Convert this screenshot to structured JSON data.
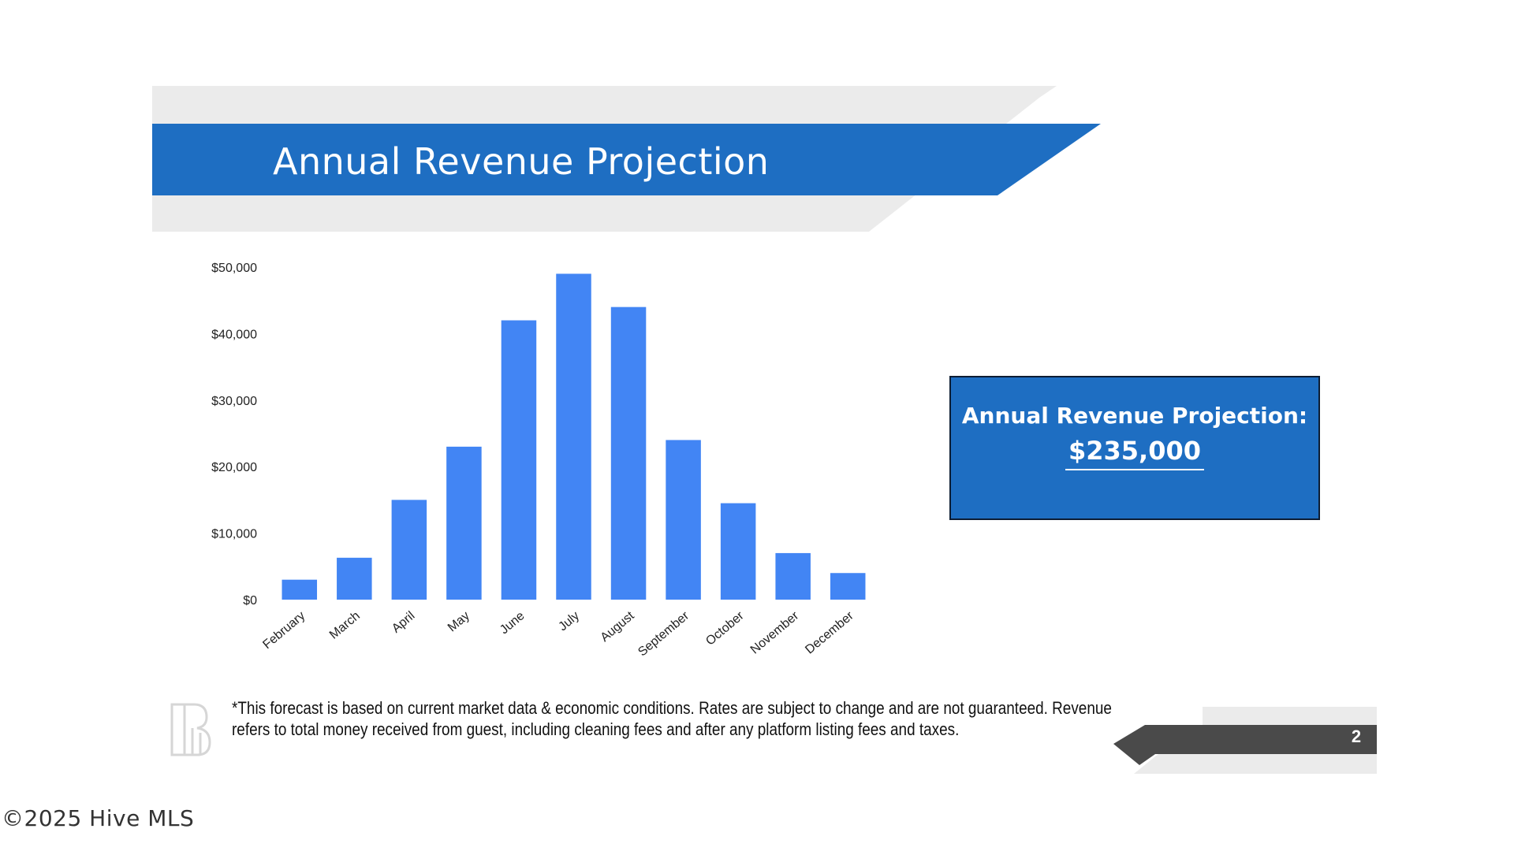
{
  "slide": {
    "title": "Annual Revenue Projection",
    "page_number": "2",
    "footnote": "*This forecast is based on current market data & economic conditions. Rates are subject to change and are not guaranteed. Revenue refers to total money received from guest, including cleaning fees and after any platform listing fees and taxes.",
    "watermark": "©2025 Hive MLS"
  },
  "summary_box": {
    "label": "Annual Revenue Projection:",
    "value": "$235,000"
  },
  "colors": {
    "title_band": "#1e6ec2",
    "band_shadow": "#ebebeb",
    "bar": "#4285f4",
    "summary_box": "#1e6ec2",
    "page_band": "#4a4a4a"
  },
  "chart_data": {
    "type": "bar",
    "categories": [
      "February",
      "March",
      "April",
      "May",
      "June",
      "July",
      "August",
      "September",
      "October",
      "November",
      "December"
    ],
    "values": [
      3000,
      6300,
      15000,
      23000,
      42000,
      49000,
      44000,
      24000,
      14500,
      7000,
      4000
    ],
    "ylim": [
      0,
      50000
    ],
    "yticks": [
      0,
      10000,
      20000,
      30000,
      40000,
      50000
    ],
    "ytick_labels": [
      "$0",
      "$10,000",
      "$20,000",
      "$30,000",
      "$40,000",
      "$50,000"
    ],
    "grid": false,
    "legend": "none"
  }
}
